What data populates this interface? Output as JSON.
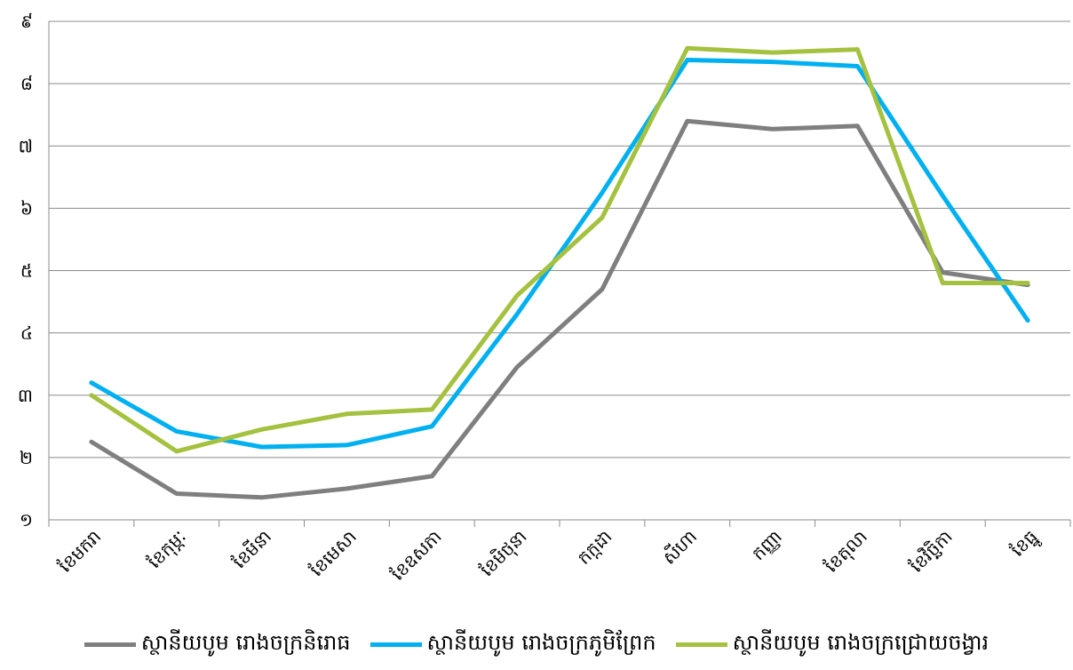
{
  "chart_data": {
    "type": "line",
    "categories": [
      "ខែមករា",
      "ខែកុម្ភៈ",
      "ខែមីនា",
      "ខែមេសា",
      "ខែឧសភា",
      "ខែមិថុនា",
      "កក្កដា",
      "សីហា",
      "កញ្ញា",
      "ខែតុលា",
      "ខែវិច្ឆិកា",
      "ខែធ្នូ"
    ],
    "y_ticks": [
      "១",
      "២",
      "៣",
      "៤",
      "៥",
      "៦",
      "៧",
      "៨",
      "៩"
    ],
    "ylim": [
      1,
      9
    ],
    "grid": true,
    "legend_position": "bottom",
    "series": [
      {
        "name": "ស្ថានីយបូម រោងចក្រនិរោធ",
        "color": "#7f7f7f",
        "values": [
          2.25,
          1.42,
          1.36,
          1.5,
          1.7,
          3.45,
          4.7,
          7.4,
          7.27,
          7.32,
          4.97,
          4.77
        ]
      },
      {
        "name": "ស្ថានីយបូម រោងចក្រភូមិព្រែក",
        "color": "#00b0f0",
        "values": [
          3.2,
          2.42,
          2.17,
          2.2,
          2.5,
          4.3,
          6.25,
          8.38,
          8.35,
          8.28,
          6.2,
          4.2
        ]
      },
      {
        "name": "ស្ថានីយបូម រោងចក្រជ្រោយចង្វារ",
        "color": "#a4c13f",
        "values": [
          3.0,
          2.1,
          2.45,
          2.7,
          2.77,
          4.6,
          5.85,
          8.57,
          8.5,
          8.55,
          4.8,
          4.8
        ]
      }
    ]
  }
}
